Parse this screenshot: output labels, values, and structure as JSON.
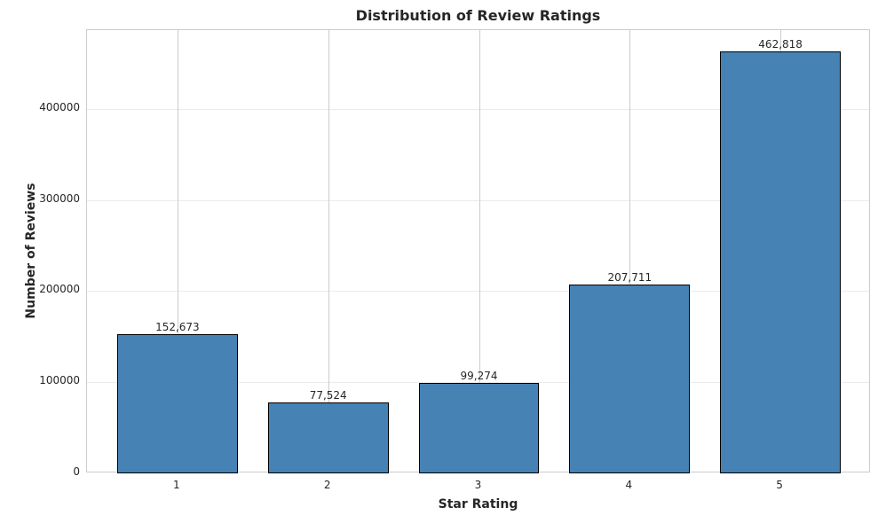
{
  "chart_data": {
    "type": "bar",
    "title": "Distribution of Review Ratings",
    "xlabel": "Star Rating",
    "ylabel": "Number of Reviews",
    "categories": [
      "1",
      "2",
      "3",
      "4",
      "5"
    ],
    "values": [
      152673,
      77524,
      99274,
      207711,
      462818
    ],
    "value_labels": [
      "152,673",
      "77,524",
      "99,274",
      "207,711",
      "462,818"
    ],
    "yticks": [
      0,
      100000,
      200000,
      300000,
      400000
    ],
    "ytick_labels": [
      "0",
      "100000",
      "200000",
      "300000",
      "400000"
    ],
    "ylim": [
      0,
      486600
    ],
    "grid": true,
    "legend": null,
    "bar_color": "#4682b4",
    "edge_color": "#000000"
  }
}
